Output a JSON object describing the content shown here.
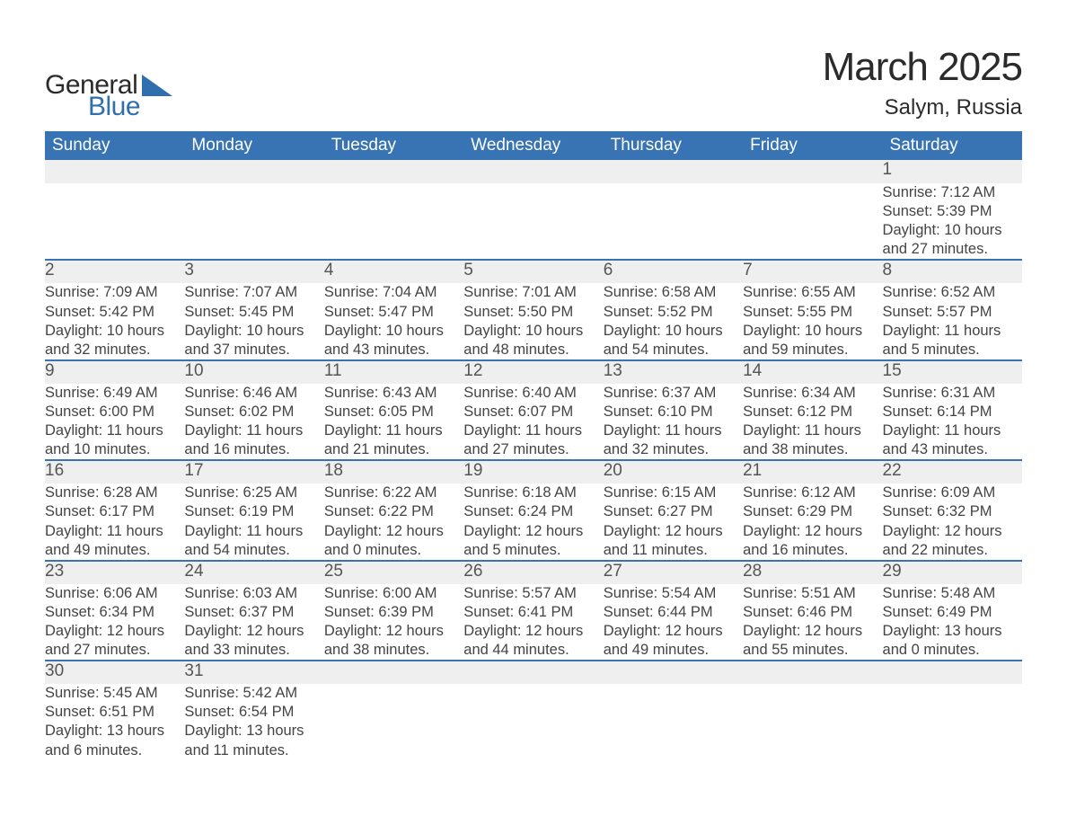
{
  "brand": {
    "general": "General",
    "blue": "Blue"
  },
  "title": "March 2025",
  "location": "Salym, Russia",
  "colors": {
    "header_bg": "#3873b3",
    "header_text": "#ffffff",
    "daynum_bg": "#efefef",
    "row_border": "#3873b3",
    "body_text": "#444444",
    "title_text": "#2b2b2b",
    "logo_blue": "#2f6fae"
  },
  "typography": {
    "title_fontsize": 44,
    "location_fontsize": 24,
    "th_fontsize": 19,
    "daynum_fontsize": 19,
    "cell_fontsize": 16.5
  },
  "day_headers": [
    "Sunday",
    "Monday",
    "Tuesday",
    "Wednesday",
    "Thursday",
    "Friday",
    "Saturday"
  ],
  "weeks": [
    [
      null,
      null,
      null,
      null,
      null,
      null,
      {
        "n": "1",
        "sr": "Sunrise: 7:12 AM",
        "ss": "Sunset: 5:39 PM",
        "d1": "Daylight: 10 hours",
        "d2": "and 27 minutes."
      }
    ],
    [
      {
        "n": "2",
        "sr": "Sunrise: 7:09 AM",
        "ss": "Sunset: 5:42 PM",
        "d1": "Daylight: 10 hours",
        "d2": "and 32 minutes."
      },
      {
        "n": "3",
        "sr": "Sunrise: 7:07 AM",
        "ss": "Sunset: 5:45 PM",
        "d1": "Daylight: 10 hours",
        "d2": "and 37 minutes."
      },
      {
        "n": "4",
        "sr": "Sunrise: 7:04 AM",
        "ss": "Sunset: 5:47 PM",
        "d1": "Daylight: 10 hours",
        "d2": "and 43 minutes."
      },
      {
        "n": "5",
        "sr": "Sunrise: 7:01 AM",
        "ss": "Sunset: 5:50 PM",
        "d1": "Daylight: 10 hours",
        "d2": "and 48 minutes."
      },
      {
        "n": "6",
        "sr": "Sunrise: 6:58 AM",
        "ss": "Sunset: 5:52 PM",
        "d1": "Daylight: 10 hours",
        "d2": "and 54 minutes."
      },
      {
        "n": "7",
        "sr": "Sunrise: 6:55 AM",
        "ss": "Sunset: 5:55 PM",
        "d1": "Daylight: 10 hours",
        "d2": "and 59 minutes."
      },
      {
        "n": "8",
        "sr": "Sunrise: 6:52 AM",
        "ss": "Sunset: 5:57 PM",
        "d1": "Daylight: 11 hours",
        "d2": "and 5 minutes."
      }
    ],
    [
      {
        "n": "9",
        "sr": "Sunrise: 6:49 AM",
        "ss": "Sunset: 6:00 PM",
        "d1": "Daylight: 11 hours",
        "d2": "and 10 minutes."
      },
      {
        "n": "10",
        "sr": "Sunrise: 6:46 AM",
        "ss": "Sunset: 6:02 PM",
        "d1": "Daylight: 11 hours",
        "d2": "and 16 minutes."
      },
      {
        "n": "11",
        "sr": "Sunrise: 6:43 AM",
        "ss": "Sunset: 6:05 PM",
        "d1": "Daylight: 11 hours",
        "d2": "and 21 minutes."
      },
      {
        "n": "12",
        "sr": "Sunrise: 6:40 AM",
        "ss": "Sunset: 6:07 PM",
        "d1": "Daylight: 11 hours",
        "d2": "and 27 minutes."
      },
      {
        "n": "13",
        "sr": "Sunrise: 6:37 AM",
        "ss": "Sunset: 6:10 PM",
        "d1": "Daylight: 11 hours",
        "d2": "and 32 minutes."
      },
      {
        "n": "14",
        "sr": "Sunrise: 6:34 AM",
        "ss": "Sunset: 6:12 PM",
        "d1": "Daylight: 11 hours",
        "d2": "and 38 minutes."
      },
      {
        "n": "15",
        "sr": "Sunrise: 6:31 AM",
        "ss": "Sunset: 6:14 PM",
        "d1": "Daylight: 11 hours",
        "d2": "and 43 minutes."
      }
    ],
    [
      {
        "n": "16",
        "sr": "Sunrise: 6:28 AM",
        "ss": "Sunset: 6:17 PM",
        "d1": "Daylight: 11 hours",
        "d2": "and 49 minutes."
      },
      {
        "n": "17",
        "sr": "Sunrise: 6:25 AM",
        "ss": "Sunset: 6:19 PM",
        "d1": "Daylight: 11 hours",
        "d2": "and 54 minutes."
      },
      {
        "n": "18",
        "sr": "Sunrise: 6:22 AM",
        "ss": "Sunset: 6:22 PM",
        "d1": "Daylight: 12 hours",
        "d2": "and 0 minutes."
      },
      {
        "n": "19",
        "sr": "Sunrise: 6:18 AM",
        "ss": "Sunset: 6:24 PM",
        "d1": "Daylight: 12 hours",
        "d2": "and 5 minutes."
      },
      {
        "n": "20",
        "sr": "Sunrise: 6:15 AM",
        "ss": "Sunset: 6:27 PM",
        "d1": "Daylight: 12 hours",
        "d2": "and 11 minutes."
      },
      {
        "n": "21",
        "sr": "Sunrise: 6:12 AM",
        "ss": "Sunset: 6:29 PM",
        "d1": "Daylight: 12 hours",
        "d2": "and 16 minutes."
      },
      {
        "n": "22",
        "sr": "Sunrise: 6:09 AM",
        "ss": "Sunset: 6:32 PM",
        "d1": "Daylight: 12 hours",
        "d2": "and 22 minutes."
      }
    ],
    [
      {
        "n": "23",
        "sr": "Sunrise: 6:06 AM",
        "ss": "Sunset: 6:34 PM",
        "d1": "Daylight: 12 hours",
        "d2": "and 27 minutes."
      },
      {
        "n": "24",
        "sr": "Sunrise: 6:03 AM",
        "ss": "Sunset: 6:37 PM",
        "d1": "Daylight: 12 hours",
        "d2": "and 33 minutes."
      },
      {
        "n": "25",
        "sr": "Sunrise: 6:00 AM",
        "ss": "Sunset: 6:39 PM",
        "d1": "Daylight: 12 hours",
        "d2": "and 38 minutes."
      },
      {
        "n": "26",
        "sr": "Sunrise: 5:57 AM",
        "ss": "Sunset: 6:41 PM",
        "d1": "Daylight: 12 hours",
        "d2": "and 44 minutes."
      },
      {
        "n": "27",
        "sr": "Sunrise: 5:54 AM",
        "ss": "Sunset: 6:44 PM",
        "d1": "Daylight: 12 hours",
        "d2": "and 49 minutes."
      },
      {
        "n": "28",
        "sr": "Sunrise: 5:51 AM",
        "ss": "Sunset: 6:46 PM",
        "d1": "Daylight: 12 hours",
        "d2": "and 55 minutes."
      },
      {
        "n": "29",
        "sr": "Sunrise: 5:48 AM",
        "ss": "Sunset: 6:49 PM",
        "d1": "Daylight: 13 hours",
        "d2": "and 0 minutes."
      }
    ],
    [
      {
        "n": "30",
        "sr": "Sunrise: 5:45 AM",
        "ss": "Sunset: 6:51 PM",
        "d1": "Daylight: 13 hours",
        "d2": "and 6 minutes."
      },
      {
        "n": "31",
        "sr": "Sunrise: 5:42 AM",
        "ss": "Sunset: 6:54 PM",
        "d1": "Daylight: 13 hours",
        "d2": "and 11 minutes."
      },
      null,
      null,
      null,
      null,
      null
    ]
  ]
}
